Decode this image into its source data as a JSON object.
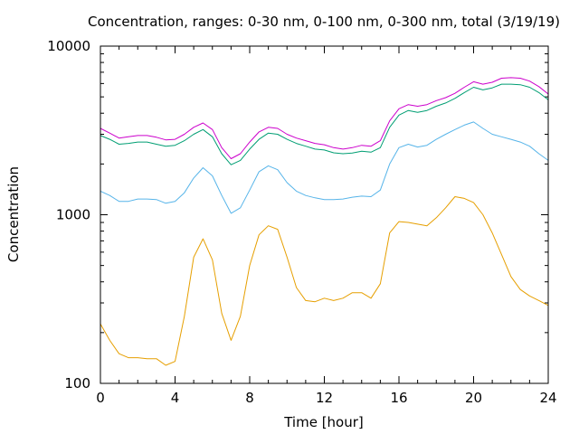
{
  "chart_data": {
    "type": "line",
    "title": "Concentration, ranges: 0-30 nm, 0-100 nm, 0-300 nm, total (3/19/19)",
    "xlabel": "Time [hour]",
    "ylabel": "Concentration",
    "xlim": [
      0,
      24
    ],
    "ylim": [
      100,
      10000
    ],
    "yscale": "log",
    "grid": false,
    "legend": "none",
    "x_ticks": [
      0,
      4,
      8,
      12,
      16,
      20,
      24
    ],
    "x_tick_labels": [
      "0",
      "4",
      "8",
      "12",
      "16",
      "20",
      "24"
    ],
    "y_ticks": [
      100,
      1000,
      10000
    ],
    "y_tick_labels": [
      "100",
      "1000",
      "10000"
    ],
    "series": [
      {
        "color": "#e69f00",
        "x": [
          0,
          0.5,
          1,
          1.5,
          2,
          2.5,
          3,
          3.5,
          4,
          4.5,
          5,
          5.5,
          6,
          6.5,
          7,
          7.5,
          8,
          8.5,
          9,
          9.5,
          10,
          10.5,
          11,
          11.5,
          12,
          12.5,
          13,
          13.5,
          14,
          14.5,
          15,
          15.5,
          16,
          16.5,
          17,
          17.5,
          18,
          18.5,
          19,
          19.5,
          20,
          20.5,
          21,
          21.5,
          22,
          22.5,
          23,
          23.5,
          24
        ],
        "values": [
          225,
          180,
          150,
          142,
          142,
          140,
          140,
          128,
          135,
          250,
          560,
          720,
          540,
          260,
          180,
          250,
          500,
          760,
          860,
          820,
          560,
          370,
          310,
          305,
          320,
          310,
          320,
          345,
          345,
          320,
          390,
          780,
          910,
          900,
          880,
          860,
          960,
          1100,
          1280,
          1250,
          1180,
          1000,
          780,
          580,
          430,
          360,
          330,
          310,
          290
        ]
      },
      {
        "color": "#56b4e9",
        "x": [
          0,
          0.5,
          1,
          1.5,
          2,
          2.5,
          3,
          3.5,
          4,
          4.5,
          5,
          5.5,
          6,
          6.5,
          7,
          7.5,
          8,
          8.5,
          9,
          9.5,
          10,
          10.5,
          11,
          11.5,
          12,
          12.5,
          13,
          13.5,
          14,
          14.5,
          15,
          15.5,
          16,
          16.5,
          17,
          17.5,
          18,
          18.5,
          19,
          19.5,
          20,
          20.5,
          21,
          21.5,
          22,
          22.5,
          23,
          23.5,
          24
        ],
        "values": [
          1380,
          1300,
          1200,
          1200,
          1240,
          1240,
          1230,
          1170,
          1200,
          1350,
          1650,
          1900,
          1700,
          1300,
          1020,
          1100,
          1400,
          1800,
          1950,
          1850,
          1550,
          1380,
          1300,
          1260,
          1230,
          1230,
          1240,
          1270,
          1290,
          1280,
          1400,
          2000,
          2500,
          2620,
          2520,
          2580,
          2800,
          3000,
          3200,
          3400,
          3550,
          3250,
          3000,
          2900,
          2800,
          2700,
          2550,
          2300,
          2100
        ]
      },
      {
        "color": "#009e73",
        "x": [
          0,
          0.5,
          1,
          1.5,
          2,
          2.5,
          3,
          3.5,
          4,
          4.5,
          5,
          5.5,
          6,
          6.5,
          7,
          7.5,
          8,
          8.5,
          9,
          9.5,
          10,
          10.5,
          11,
          11.5,
          12,
          12.5,
          13,
          13.5,
          14,
          14.5,
          15,
          15.5,
          16,
          16.5,
          17,
          17.5,
          18,
          18.5,
          19,
          19.5,
          20,
          20.5,
          21,
          21.5,
          22,
          22.5,
          23,
          23.5,
          24
        ],
        "values": [
          2950,
          2800,
          2620,
          2650,
          2700,
          2700,
          2620,
          2550,
          2580,
          2750,
          3000,
          3200,
          2900,
          2300,
          1980,
          2100,
          2450,
          2800,
          3050,
          3000,
          2800,
          2650,
          2550,
          2450,
          2420,
          2330,
          2300,
          2320,
          2380,
          2350,
          2500,
          3300,
          3900,
          4150,
          4050,
          4150,
          4400,
          4600,
          4900,
          5300,
          5700,
          5500,
          5650,
          5950,
          5950,
          5900,
          5700,
          5300,
          4800
        ]
      },
      {
        "color": "#cc00cc",
        "x": [
          0,
          0.5,
          1,
          1.5,
          2,
          2.5,
          3,
          3.5,
          4,
          4.5,
          5,
          5.5,
          6,
          6.5,
          7,
          7.5,
          8,
          8.5,
          9,
          9.5,
          10,
          10.5,
          11,
          11.5,
          12,
          12.5,
          13,
          13.5,
          14,
          14.5,
          15,
          15.5,
          16,
          16.5,
          17,
          17.5,
          18,
          18.5,
          19,
          19.5,
          20,
          20.5,
          21,
          21.5,
          22,
          22.5,
          23,
          23.5,
          24
        ],
        "values": [
          3250,
          3050,
          2850,
          2900,
          2950,
          2950,
          2880,
          2780,
          2800,
          3000,
          3300,
          3500,
          3200,
          2500,
          2150,
          2300,
          2700,
          3100,
          3300,
          3250,
          3000,
          2850,
          2750,
          2650,
          2600,
          2500,
          2450,
          2500,
          2580,
          2550,
          2750,
          3600,
          4250,
          4500,
          4400,
          4500,
          4750,
          4950,
          5250,
          5700,
          6150,
          5950,
          6100,
          6450,
          6500,
          6450,
          6200,
          5750,
          5200
        ]
      }
    ]
  }
}
